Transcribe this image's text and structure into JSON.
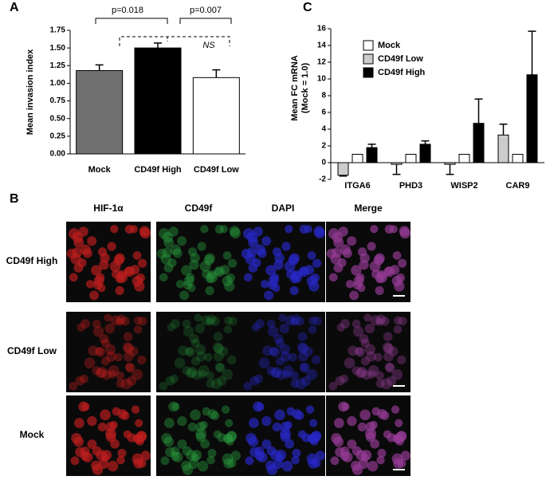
{
  "chart_data": [
    {
      "type": "bar",
      "ylabel": "Mean invasion index",
      "categories": [
        "Mock",
        "CD49f High",
        "CD49f Low"
      ],
      "values": [
        1.18,
        1.5,
        1.08
      ],
      "errors": [
        0.08,
        0.07,
        0.11
      ],
      "colors": [
        "#707070",
        "#000000",
        "#ffffff"
      ],
      "ylim": [
        0,
        1.75
      ],
      "yticks": [
        {
          "value": 0,
          "label": "0.00"
        },
        {
          "value": 0.25,
          "label": "0.25"
        },
        {
          "value": 0.5,
          "label": "0.50"
        },
        {
          "value": 0.75,
          "label": "0.75"
        },
        {
          "value": 1,
          "label": "1.00"
        },
        {
          "value": 1.25,
          "label": "1.25"
        },
        {
          "value": 1.5,
          "label": "1.50"
        },
        {
          "value": 1.75,
          "label": "1.75"
        }
      ],
      "annotations": [
        "p=0.018",
        "p=0.007",
        "NS"
      ]
    },
    {
      "type": "grouped-bar",
      "ylabel": [
        "Mean FC mRNA",
        "(Mock = 1.0)"
      ],
      "categories": [
        "ITGA6",
        "PHD3",
        "WISP2",
        "CAR9"
      ],
      "series": [
        {
          "name": "Mock",
          "color": "#ffffff",
          "values": [
            1,
            1,
            1,
            1
          ]
        },
        {
          "name": "CD49f Low",
          "color": "#cccccc",
          "values": [
            -1.5,
            -0.2,
            -0.2,
            3.3
          ],
          "errors": [
            0.1,
            1.2,
            1.2,
            1.3
          ]
        },
        {
          "name": "CD49f High",
          "color": "#000000",
          "values": [
            1.8,
            2.2,
            4.7,
            10.5
          ],
          "errors": [
            0.4,
            0.4,
            2.9,
            5.2
          ]
        }
      ],
      "ylim": [
        -2,
        16
      ],
      "yticks": [
        -2,
        0,
        2,
        4,
        6,
        8,
        10,
        12,
        14,
        16
      ]
    }
  ],
  "panel_labels": [
    "A",
    "B",
    "C"
  ],
  "image_grid": {
    "columns": [
      "HIF-1α",
      "CD49f",
      "DAPI",
      "Merge"
    ],
    "rows": [
      "CD49f High",
      "CD49f Low",
      "Mock"
    ]
  }
}
